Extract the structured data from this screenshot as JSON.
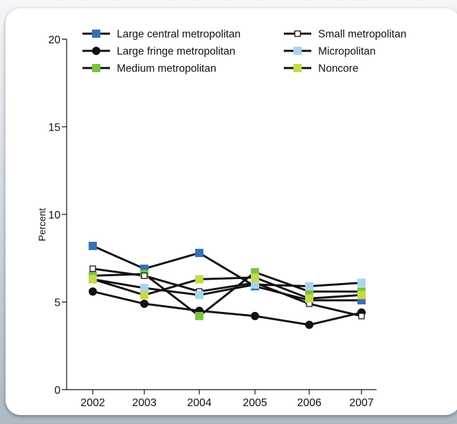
{
  "chart_data": {
    "type": "line",
    "title": "",
    "xlabel": "",
    "ylabel": "Percent",
    "categories": [
      "2002",
      "2003",
      "2004",
      "2005",
      "2006",
      "2007"
    ],
    "y_ticks": [
      "0",
      "5",
      "10",
      "15",
      "20"
    ],
    "ylim": [
      0,
      20
    ],
    "grid": false,
    "legend_position": "top",
    "series": [
      {
        "name": "Large central metropolitan",
        "marker": "square",
        "color": "#3a6fb8",
        "values": [
          8.2,
          6.9,
          7.8,
          5.9,
          5.1,
          5.1
        ]
      },
      {
        "name": "Large fringe metropolitan",
        "marker": "circle",
        "color": "#111111",
        "values": [
          5.6,
          4.9,
          4.5,
          4.2,
          3.7,
          4.4
        ]
      },
      {
        "name": "Medium metropolitan",
        "marker": "square",
        "color": "#7cc242",
        "values": [
          6.5,
          6.6,
          4.2,
          6.7,
          5.6,
          5.6
        ]
      },
      {
        "name": "Small metropolitan",
        "marker": "square-open",
        "color": "#ffffff",
        "values": [
          6.9,
          6.5,
          5.6,
          6.1,
          4.9,
          4.2
        ]
      },
      {
        "name": "Micropolitan",
        "marker": "square",
        "color": "#a9d4ee",
        "values": [
          6.3,
          5.8,
          5.4,
          6.0,
          5.9,
          6.1
        ]
      },
      {
        "name": "Noncore",
        "marker": "square",
        "color": "#c6d94a",
        "values": [
          6.3,
          5.4,
          6.3,
          6.4,
          5.2,
          5.4
        ]
      }
    ]
  }
}
